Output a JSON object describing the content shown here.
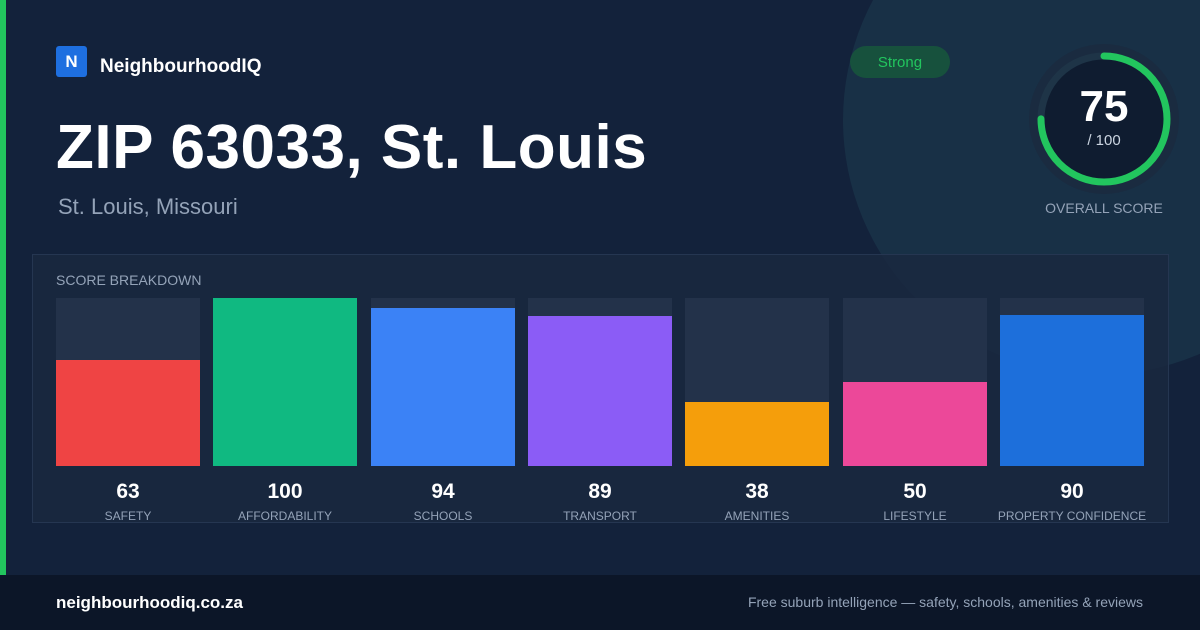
{
  "brand": {
    "logo_letter": "N",
    "name": "NeighbourhoodIQ"
  },
  "page": {
    "title": "ZIP 63033, St. Louis",
    "subtitle": "St. Louis, Missouri"
  },
  "badge": {
    "label": "Strong",
    "color": "#22c55e"
  },
  "overall": {
    "score": "75",
    "max": "/ 100",
    "caption": "OVERALL SCORE",
    "fraction": 0.75,
    "ring_color": "#22c55e"
  },
  "breakdown": {
    "title": "SCORE BREAKDOWN"
  },
  "chart_data": {
    "type": "bar",
    "categories": [
      "SAFETY",
      "AFFORDABILITY",
      "SCHOOLS",
      "TRANSPORT",
      "AMENITIES",
      "LIFESTYLE",
      "PROPERTY CONFIDENCE"
    ],
    "values": [
      63,
      100,
      94,
      89,
      38,
      50,
      90
    ],
    "colors": [
      "#ef4444",
      "#10b981",
      "#3b82f6",
      "#8b5cf6",
      "#f59e0b",
      "#ec4899",
      "#1d6fdb"
    ],
    "ylim": [
      0,
      100
    ]
  },
  "footer": {
    "url": "neighbourhoodiq.co.za",
    "tagline": "Free suburb intelligence — safety, schools, amenities & reviews"
  }
}
